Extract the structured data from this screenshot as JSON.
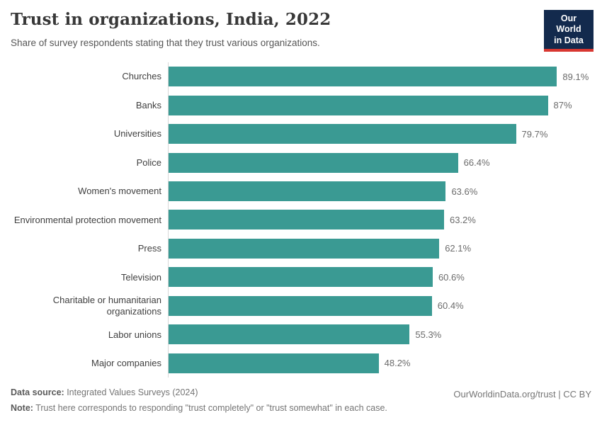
{
  "header": {
    "title": "Trust in organizations, India, 2022",
    "subtitle": "Share of survey respondents stating that they trust various organizations.",
    "logo": {
      "line1": "Our World",
      "line2": "in Data",
      "bg_color": "#132a4d",
      "accent_color": "#d83731"
    }
  },
  "chart_data": {
    "type": "bar",
    "orientation": "horizontal",
    "title": "Trust in organizations, India, 2022",
    "categories": [
      "Churches",
      "Banks",
      "Universities",
      "Police",
      "Women's movement",
      "Environmental protection movement",
      "Press",
      "Television",
      "Charitable or humanitarian organizations",
      "Labor unions",
      "Major companies"
    ],
    "values": [
      89.1,
      87,
      79.7,
      66.4,
      63.6,
      63.2,
      62.1,
      60.6,
      60.4,
      55.3,
      48.2
    ],
    "value_labels": [
      "89.1%",
      "87%",
      "79.7%",
      "66.4%",
      "63.6%",
      "63.2%",
      "62.1%",
      "60.6%",
      "60.4%",
      "55.3%",
      "48.2%"
    ],
    "bar_color": "#3a9a93",
    "xlabel": "",
    "ylabel": "",
    "xlim": [
      0,
      89.1
    ],
    "grid": false,
    "legend": false
  },
  "footer": {
    "source_label": "Data source:",
    "source_text": " Integrated Values Surveys (2024)",
    "note_label": "Note:",
    "note_text": " Trust here corresponds to responding \"trust completely\" or \"trust somewhat\" in each case.",
    "rights": "OurWorldinData.org/trust | CC BY"
  }
}
